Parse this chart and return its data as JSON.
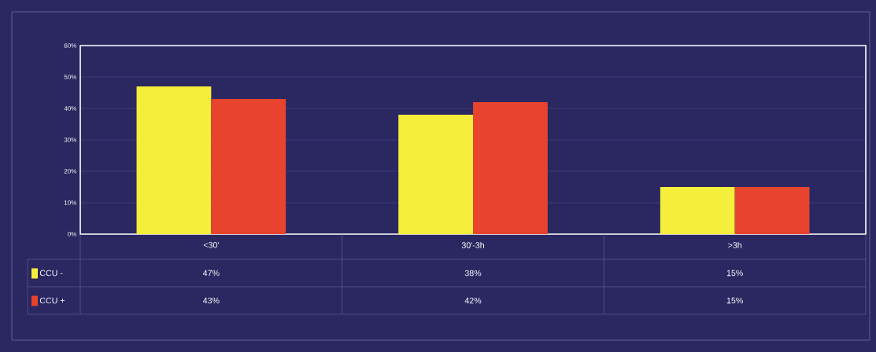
{
  "chart_data": {
    "type": "bar",
    "categories": [
      "<30'",
      "30'-3h",
      ">3h"
    ],
    "series": [
      {
        "name": "CCU -",
        "color": "#f5ee3a",
        "values": [
          47,
          38,
          15
        ],
        "value_labels": [
          "47%",
          "38%",
          "15%"
        ]
      },
      {
        "name": "CCU +",
        "color": "#e8432e",
        "values": [
          43,
          42,
          15
        ],
        "value_labels": [
          "43%",
          "42%",
          "15%"
        ]
      }
    ],
    "ylim": [
      0,
      60
    ],
    "yticks": [
      {
        "value": 0,
        "label": "0%"
      },
      {
        "value": 10,
        "label": "10%"
      },
      {
        "value": 20,
        "label": "20%"
      },
      {
        "value": 30,
        "label": "30%"
      },
      {
        "value": 40,
        "label": "40%"
      },
      {
        "value": 50,
        "label": "50%"
      },
      {
        "value": 60,
        "label": "60%"
      }
    ],
    "grid": "y",
    "legend": "bottom left"
  }
}
